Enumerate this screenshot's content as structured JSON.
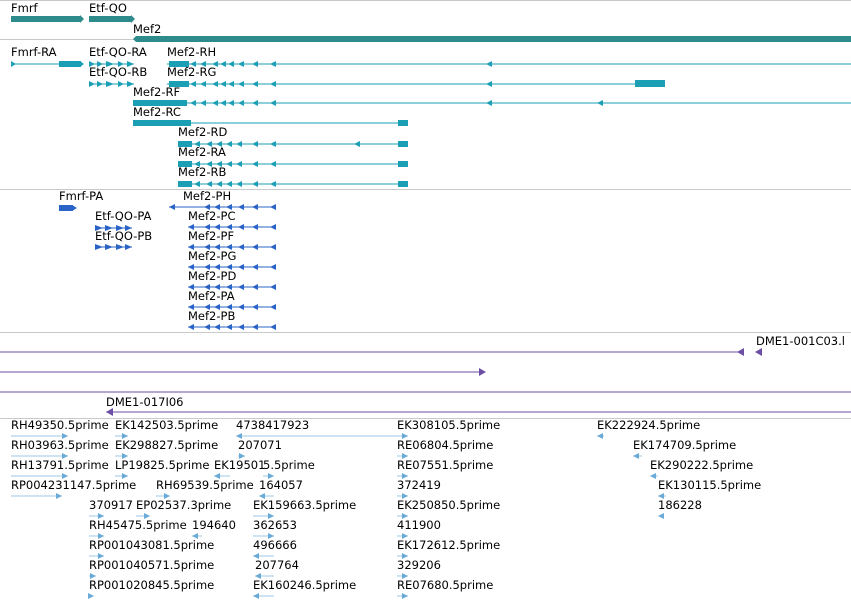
{
  "colors": {
    "gene": "#2e8b8b",
    "transcript": "#1a9fb5",
    "protein": "#2a63c8",
    "clone": "#6b4fa3",
    "est": "#6aaad6",
    "est_line": "#9ec8e6",
    "separator": "#c9c9c9"
  },
  "tracks": {
    "genes": [
      {
        "name": "Fmrf",
        "kind": "gene"
      },
      {
        "name": "Etf-QO",
        "kind": "gene"
      },
      {
        "name": "Mef2",
        "kind": "gene"
      }
    ],
    "transcripts": [
      {
        "name": "Fmrf-RA"
      },
      {
        "name": "Etf-QO-RA"
      },
      {
        "name": "Etf-QO-RB"
      },
      {
        "name": "Mef2-RH"
      },
      {
        "name": "Mef2-RG"
      },
      {
        "name": "Mef2-RF"
      },
      {
        "name": "Mef2-RC"
      },
      {
        "name": "Mef2-RD"
      },
      {
        "name": "Mef2-RA"
      },
      {
        "name": "Mef2-RB"
      }
    ],
    "proteins": [
      {
        "name": "Fmrf-PA"
      },
      {
        "name": "Etf-QO-PA"
      },
      {
        "name": "Etf-QO-PB"
      },
      {
        "name": "Mef2-PH"
      },
      {
        "name": "Mef2-PC"
      },
      {
        "name": "Mef2-PF"
      },
      {
        "name": "Mef2-PG"
      },
      {
        "name": "Mef2-PD"
      },
      {
        "name": "Mef2-PA"
      },
      {
        "name": "Mef2-PB"
      }
    ],
    "clones": [
      {
        "name": "DME1-001C03.l"
      },
      {
        "name": "DME1-017I06"
      }
    ],
    "ests": [
      {
        "name": "RH49350.5prime"
      },
      {
        "name": "EK142503.5prime"
      },
      {
        "name": "4738417923"
      },
      {
        "name": "EK308105.5prime"
      },
      {
        "name": "EK222924.5prime"
      },
      {
        "name": "RH03963.5prime"
      },
      {
        "name": "EK298827.5prime"
      },
      {
        "name": "207071"
      },
      {
        "name": "RE06804.5prime"
      },
      {
        "name": "EK174709.5prime"
      },
      {
        "name": "RH13791.5prime"
      },
      {
        "name": "LP19825.5prime"
      },
      {
        "name": "EK19501"
      },
      {
        "name": "5.5prime"
      },
      {
        "name": "RE07551.5prime"
      },
      {
        "name": "EK290222.5prime"
      },
      {
        "name": "RP004231147.5prime"
      },
      {
        "name": "RH69539.5prime"
      },
      {
        "name": "164057"
      },
      {
        "name": "372419"
      },
      {
        "name": "EK130115.5prime"
      },
      {
        "name": "370917"
      },
      {
        "name": "EP02537.3prime"
      },
      {
        "name": "EK159663.5prime"
      },
      {
        "name": "EK250850.5prime"
      },
      {
        "name": "186228"
      },
      {
        "name": "RH45475.5prime"
      },
      {
        "name": "194640"
      },
      {
        "name": "362653"
      },
      {
        "name": "411900"
      },
      {
        "name": "RP001043081.5prime"
      },
      {
        "name": "496666"
      },
      {
        "name": "EK172612.5prime"
      },
      {
        "name": "RP001040571.5prime"
      },
      {
        "name": "207764"
      },
      {
        "name": "329206"
      },
      {
        "name": "RP001020845.5prime"
      },
      {
        "name": "EK160246.5prime"
      },
      {
        "name": "RE07680.5prime"
      }
    ]
  }
}
